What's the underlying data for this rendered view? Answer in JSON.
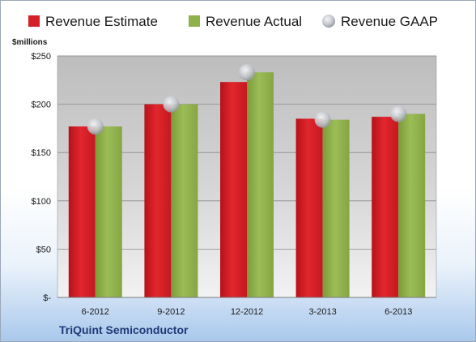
{
  "chart_data": {
    "type": "bar",
    "title": "",
    "ylabel": "$millions",
    "xlabel": "",
    "company": "TriQuint Semiconductor",
    "categories": [
      "6-2012",
      "9-2012",
      "12-2012",
      "3-2013",
      "6-2013"
    ],
    "series": [
      {
        "name": "Revenue Estimate",
        "kind": "bar",
        "color": "#d42027",
        "values": [
          177,
          200,
          223,
          185,
          187
        ]
      },
      {
        "name": "Revenue Actual",
        "kind": "bar",
        "color": "#8fb04a",
        "values": [
          177,
          200,
          233,
          184,
          190
        ]
      },
      {
        "name": "Revenue GAAP",
        "kind": "marker",
        "color": "#b8bcc4",
        "values": [
          177,
          200,
          233,
          184,
          190
        ]
      }
    ],
    "ylim": [
      0,
      250
    ],
    "yticks": [
      0,
      50,
      100,
      150,
      200,
      250
    ],
    "ytick_labels": [
      "$-",
      "$50",
      "$100",
      "$150",
      "$200",
      "$250"
    ],
    "grid": true,
    "legend_position": "top"
  }
}
